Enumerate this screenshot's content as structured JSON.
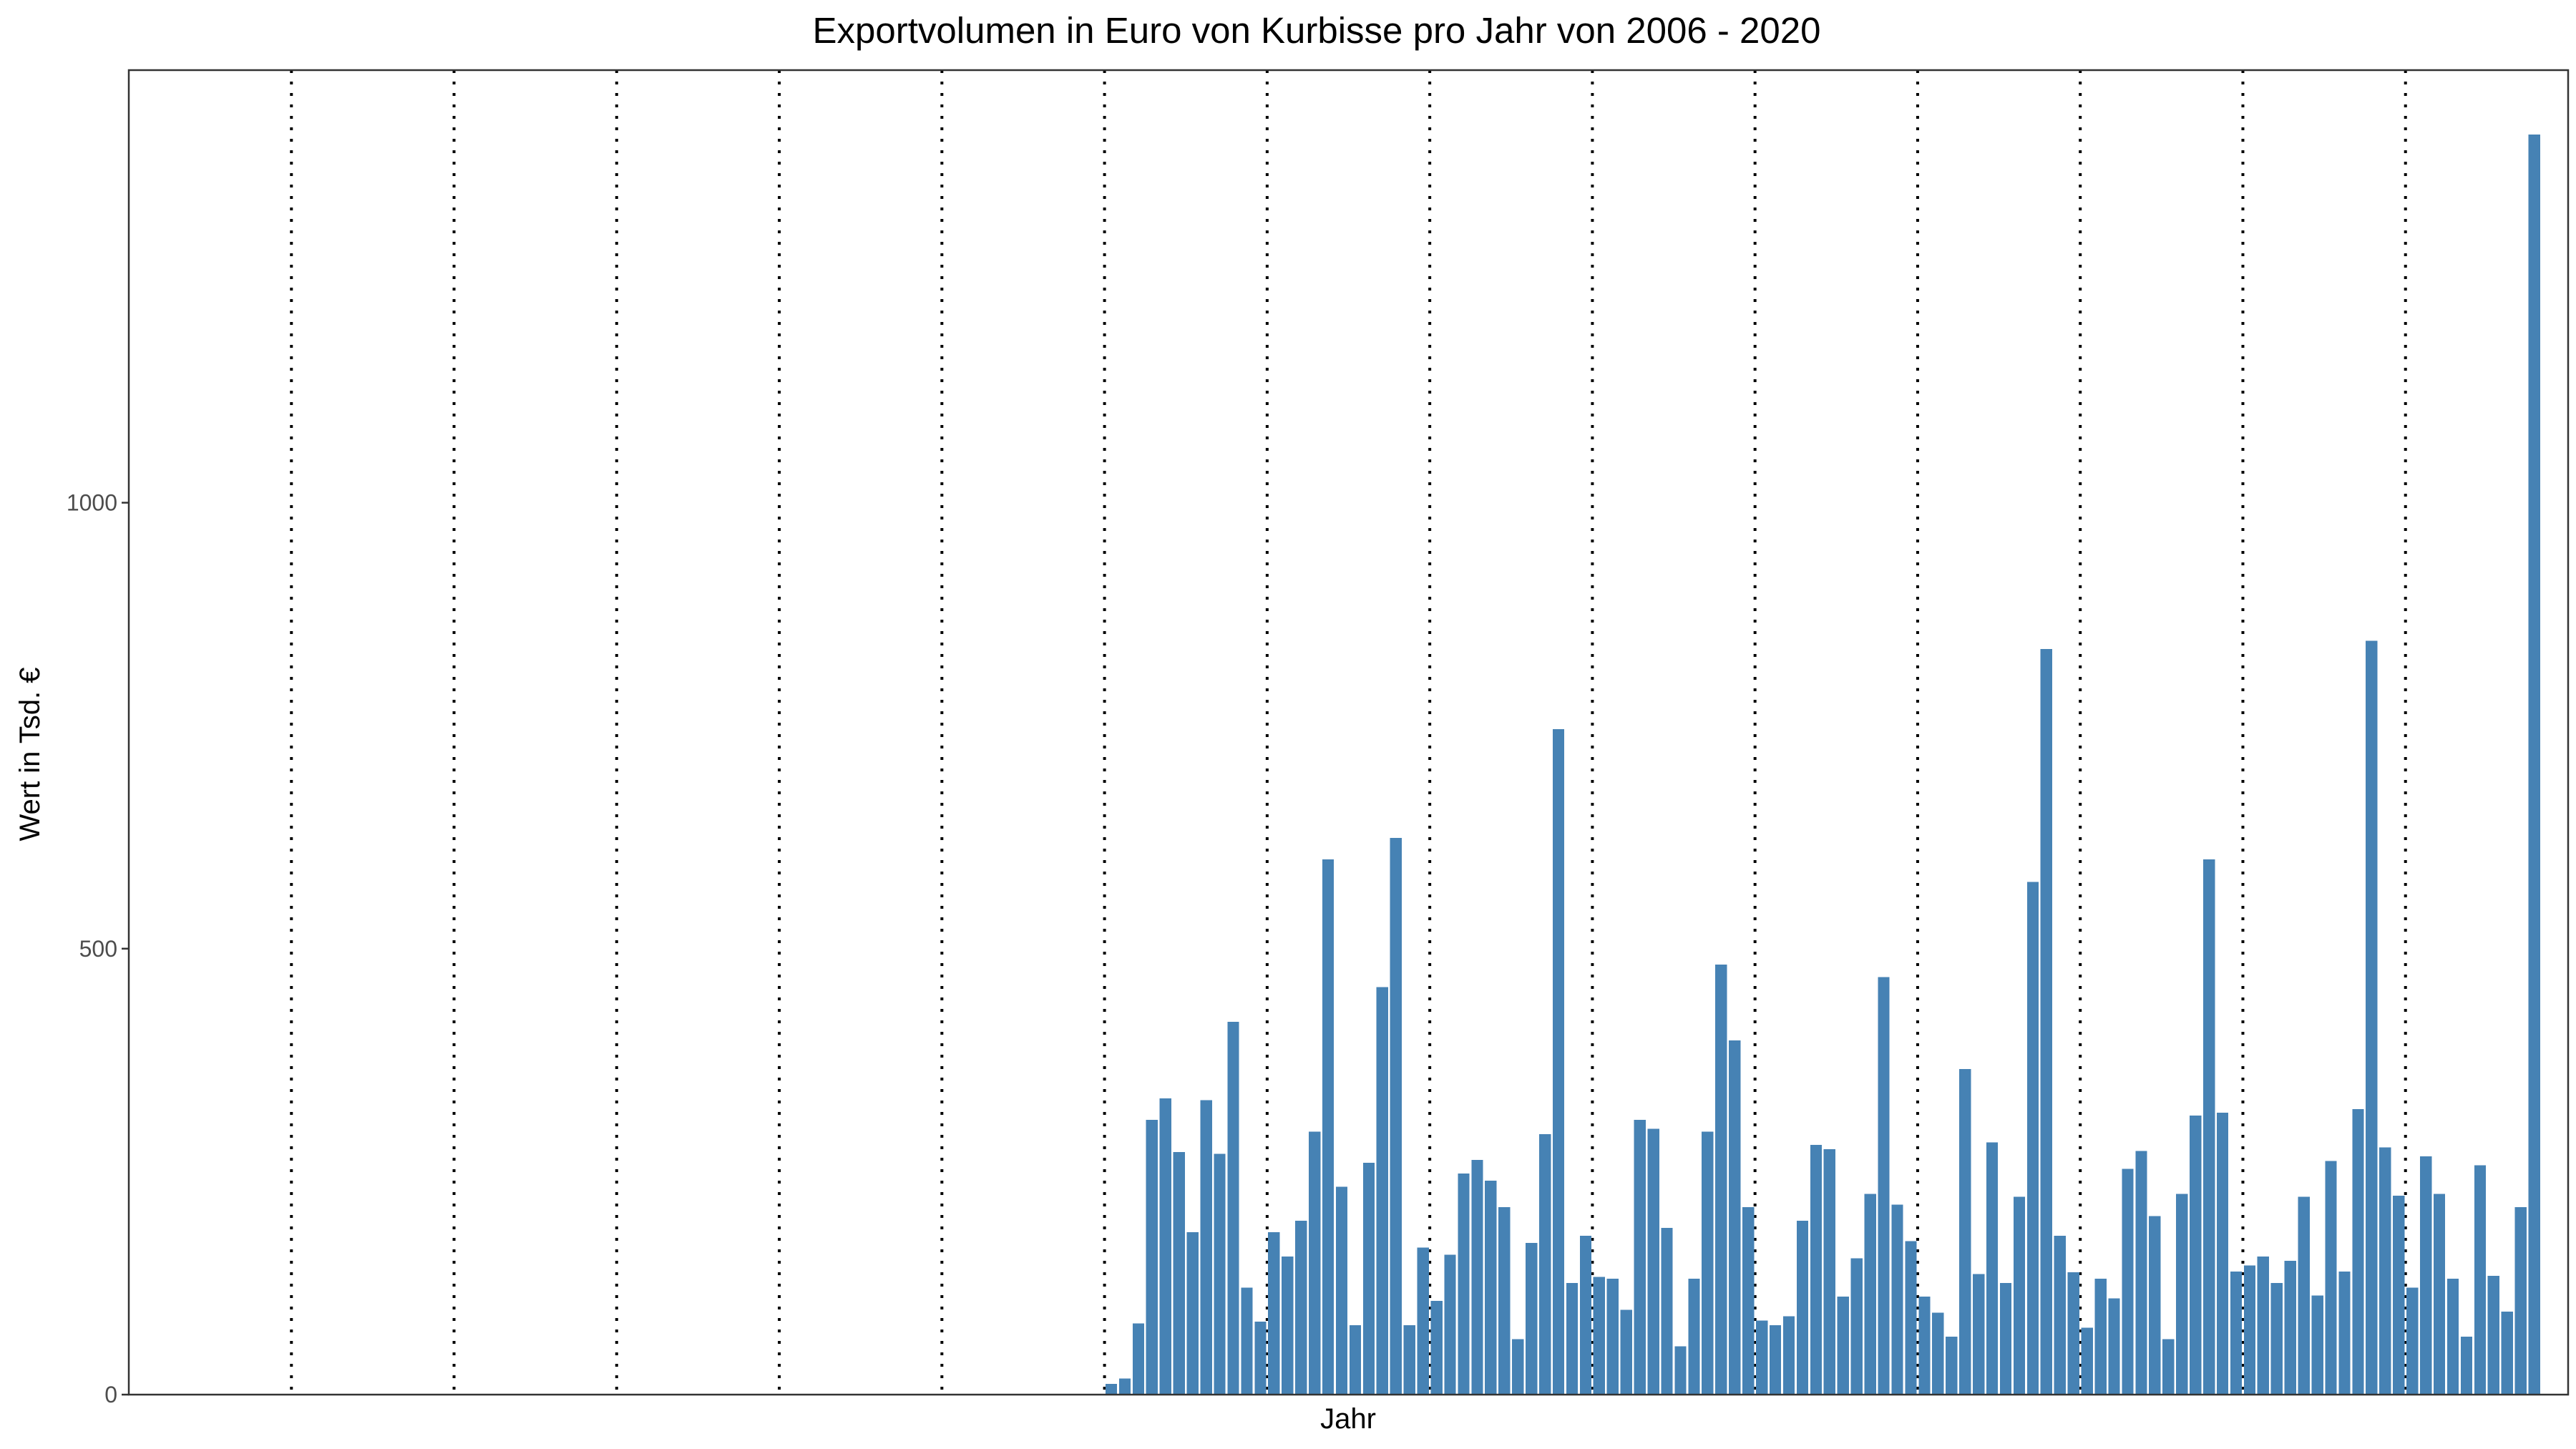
{
  "chart_data": {
    "type": "bar",
    "title": "Exportvolumen in Euro von Kurbisse pro Jahr von 2006 - 2020",
    "xlabel": "Jahr",
    "ylabel": "Wert in Tsd. €",
    "ylim": [
      0,
      1485
    ],
    "yticks": [
      0,
      500,
      1000
    ],
    "x_slots": 180,
    "bar_color": "#4682B4",
    "grid": "vertical dotted lines every 12 months, no horizontal grid",
    "legend": "none",
    "values": [
      0,
      0,
      0,
      0,
      0,
      0,
      0,
      0,
      0,
      0,
      0,
      0,
      0,
      0,
      0,
      0,
      0,
      0,
      0,
      0,
      0,
      0,
      0,
      0,
      0,
      0,
      0,
      0,
      0,
      0,
      0,
      0,
      0,
      0,
      0,
      0,
      0,
      0,
      0,
      0,
      0,
      0,
      0,
      0,
      0,
      0,
      0,
      0,
      0,
      0,
      0,
      0,
      0,
      0,
      0,
      0,
      0,
      0,
      0,
      0,
      0,
      0,
      0,
      0,
      0,
      0,
      0,
      0,
      0,
      0,
      0,
      0,
      12,
      18,
      80,
      308,
      332,
      272,
      182,
      330,
      270,
      418,
      120,
      82,
      182,
      155,
      195,
      295,
      600,
      233,
      78,
      260,
      457,
      624,
      78,
      165,
      105,
      157,
      248,
      263,
      240,
      210,
      62,
      170,
      292,
      746,
      125,
      178,
      132,
      130,
      95,
      308,
      298,
      187,
      54,
      130,
      295,
      482,
      397,
      210,
      83,
      78,
      88,
      195,
      280,
      275,
      110,
      153,
      225,
      468,
      213,
      172,
      110,
      92,
      65,
      365,
      135,
      283,
      125,
      222,
      575,
      836,
      178,
      137,
      75,
      130,
      108,
      253,
      273,
      200,
      62,
      225,
      313,
      600,
      316,
      138,
      145,
      155,
      125,
      150,
      222,
      111,
      262,
      138,
      320,
      845,
      277,
      223,
      120,
      267,
      225,
      130,
      65,
      257,
      133,
      93,
      210,
      1413
    ]
  }
}
